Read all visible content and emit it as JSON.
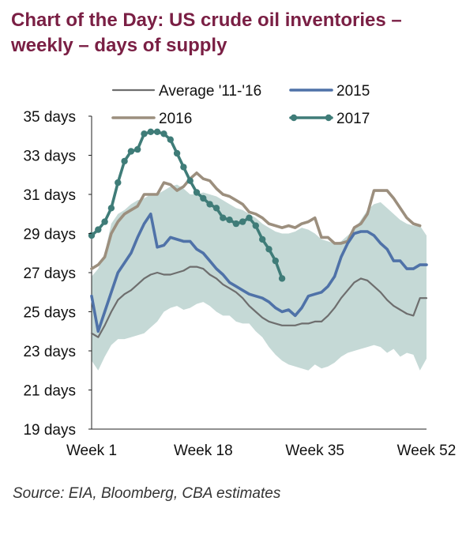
{
  "title": "Chart of the Day: US crude oil inventories – weekly – days of supply",
  "source": "Source: EIA, Bloomberg, CBA estimates",
  "colors": {
    "title": "#7a1f44",
    "band": "#c5d9d6",
    "average": "#6e6e6e",
    "s2015": "#4f72a8",
    "s2016": "#9c8f7e",
    "s2017": "#3f7c78"
  },
  "chart_data": {
    "type": "line",
    "title": "Chart of the Day: US crude oil inventories – weekly – days of supply",
    "xlabel": "",
    "ylabel": "",
    "xlim": [
      1,
      52
    ],
    "ylim": [
      19,
      35
    ],
    "y_ticks": [
      19,
      21,
      23,
      25,
      27,
      29,
      31,
      33,
      35
    ],
    "y_tick_labels": [
      "19 days",
      "21 days",
      "23 days",
      "25 days",
      "27 days",
      "29 days",
      "31 days",
      "33 days",
      "35 days"
    ],
    "x_ticks": [
      1,
      18,
      35,
      52
    ],
    "x_tick_labels": [
      "Week 1",
      "Week 18",
      "Week 35",
      "Week 52"
    ],
    "grid": false,
    "legend": {
      "placement": "top",
      "entries": [
        "Average '11-'16",
        "2015",
        "2016",
        "2017"
      ]
    },
    "band": {
      "name": "",
      "upper": [
        26.8,
        27.2,
        28.0,
        29.5,
        30.0,
        30.2,
        30.5,
        30.7,
        30.8,
        31.0,
        31.0,
        31.2,
        31.4,
        31.5,
        31.3,
        31.0,
        31.0,
        31.1,
        31.0,
        30.9,
        30.7,
        30.5,
        30.3,
        30.2,
        30.0,
        29.8,
        29.5,
        29.3,
        29.1,
        29.0,
        29.0,
        29.1,
        29.3,
        29.2,
        29.0,
        28.7,
        28.6,
        28.5,
        28.6,
        28.9,
        29.2,
        29.7,
        30.2,
        30.5,
        30.6,
        30.3,
        30.0,
        29.7,
        29.5,
        29.4,
        29.4,
        28.9
      ],
      "lower": [
        22.5,
        22.0,
        22.7,
        23.3,
        23.6,
        23.6,
        23.7,
        23.8,
        23.9,
        24.2,
        24.5,
        25.0,
        25.2,
        25.3,
        25.1,
        25.2,
        25.4,
        25.5,
        25.3,
        25.0,
        24.8,
        24.8,
        24.5,
        24.4,
        24.4,
        24.0,
        23.7,
        23.2,
        22.8,
        22.5,
        22.3,
        22.2,
        22.1,
        22.0,
        22.3,
        22.1,
        22.2,
        22.4,
        22.7,
        22.9,
        23.0,
        23.1,
        23.2,
        23.3,
        23.2,
        22.9,
        23.1,
        22.7,
        22.9,
        22.8,
        22.0,
        22.6
      ]
    },
    "series": [
      {
        "name": "Average '11-'16",
        "x": [
          1,
          2,
          3,
          4,
          5,
          6,
          7,
          8,
          9,
          10,
          11,
          12,
          13,
          14,
          15,
          16,
          17,
          18,
          19,
          20,
          21,
          22,
          23,
          24,
          25,
          26,
          27,
          28,
          29,
          30,
          31,
          32,
          33,
          34,
          35,
          36,
          37,
          38,
          39,
          40,
          41,
          42,
          43,
          44,
          45,
          46,
          47,
          48,
          49,
          50,
          51,
          52
        ],
        "values": [
          23.9,
          23.7,
          24.3,
          25.0,
          25.6,
          25.9,
          26.1,
          26.4,
          26.7,
          26.9,
          27.0,
          26.9,
          26.9,
          27.0,
          27.1,
          27.3,
          27.3,
          27.2,
          26.9,
          26.7,
          26.4,
          26.2,
          26.0,
          25.7,
          25.3,
          25.0,
          24.7,
          24.5,
          24.4,
          24.3,
          24.3,
          24.3,
          24.4,
          24.4,
          24.5,
          24.5,
          24.8,
          25.2,
          25.7,
          26.1,
          26.5,
          26.7,
          26.6,
          26.3,
          26.0,
          25.6,
          25.3,
          25.1,
          24.9,
          24.8,
          25.7,
          25.7
        ]
      },
      {
        "name": "2015",
        "x": [
          1,
          2,
          3,
          4,
          5,
          6,
          7,
          8,
          9,
          10,
          11,
          12,
          13,
          14,
          15,
          16,
          17,
          18,
          19,
          20,
          21,
          22,
          23,
          24,
          25,
          26,
          27,
          28,
          29,
          30,
          31,
          32,
          33,
          34,
          35,
          36,
          37,
          38,
          39,
          40,
          41,
          42,
          43,
          44,
          45,
          46,
          47,
          48,
          49,
          50,
          51,
          52
        ],
        "values": [
          25.8,
          24.0,
          25.0,
          26.0,
          27.0,
          27.5,
          28.0,
          28.8,
          29.5,
          30.0,
          28.3,
          28.4,
          28.8,
          28.7,
          28.6,
          28.6,
          28.2,
          28.0,
          27.6,
          27.2,
          26.9,
          26.5,
          26.3,
          26.1,
          25.9,
          25.8,
          25.7,
          25.5,
          25.2,
          25.0,
          25.1,
          24.8,
          25.2,
          25.8,
          25.9,
          26.0,
          26.3,
          26.8,
          27.8,
          28.5,
          29.0,
          29.1,
          29.1,
          28.9,
          28.5,
          28.2,
          27.6,
          27.6,
          27.2,
          27.2,
          27.4,
          27.4
        ]
      },
      {
        "name": "2016",
        "x": [
          1,
          2,
          3,
          4,
          5,
          6,
          7,
          8,
          9,
          10,
          11,
          12,
          13,
          14,
          15,
          16,
          17,
          18,
          19,
          20,
          21,
          22,
          23,
          24,
          25,
          26,
          27,
          28,
          29,
          30,
          31,
          32,
          33,
          34,
          35,
          36,
          37,
          38,
          39,
          40,
          41,
          42,
          43,
          44,
          45,
          46,
          47,
          48,
          49,
          50,
          51
        ],
        "values": [
          27.2,
          27.4,
          27.8,
          29.0,
          29.6,
          30.0,
          30.2,
          30.4,
          31.0,
          31.0,
          31.0,
          31.6,
          31.5,
          31.2,
          31.4,
          31.8,
          32.1,
          31.8,
          31.7,
          31.3,
          31.0,
          30.9,
          30.7,
          30.5,
          30.1,
          30.0,
          29.8,
          29.5,
          29.4,
          29.3,
          29.4,
          29.3,
          29.5,
          29.6,
          29.8,
          28.8,
          28.8,
          28.5,
          28.5,
          28.6,
          29.3,
          29.5,
          30.0,
          31.2,
          31.2,
          31.2,
          30.8,
          30.3,
          29.8,
          29.5,
          29.4
        ]
      },
      {
        "name": "2017",
        "x": [
          1,
          2,
          3,
          4,
          5,
          6,
          7,
          8,
          9,
          10,
          11,
          12,
          13,
          14,
          15,
          16,
          17,
          18,
          19,
          20,
          21,
          22,
          23,
          24,
          25,
          26,
          27,
          28,
          29,
          30
        ],
        "values": [
          28.9,
          29.2,
          29.6,
          30.3,
          31.6,
          32.7,
          33.2,
          33.3,
          34.1,
          34.2,
          34.2,
          34.1,
          33.8,
          33.1,
          32.4,
          31.7,
          31.1,
          30.8,
          30.5,
          30.3,
          29.8,
          29.7,
          29.5,
          29.6,
          29.8,
          29.4,
          28.7,
          28.2,
          27.6,
          26.7
        ]
      }
    ]
  }
}
